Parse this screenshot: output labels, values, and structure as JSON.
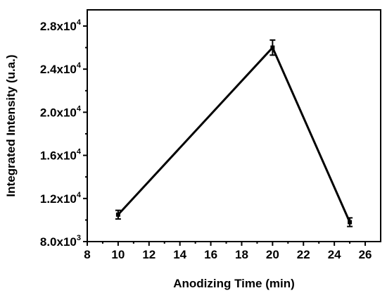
{
  "chart_data": {
    "type": "line",
    "title": "",
    "xlabel": "Anodizing Time (min)",
    "ylabel": "Integrated Intensity (u.a.)",
    "xlim": [
      8,
      27
    ],
    "ylim": [
      8000,
      29500
    ],
    "x_ticks": [
      8,
      10,
      12,
      14,
      16,
      18,
      20,
      22,
      24,
      26
    ],
    "y_ticks": [
      {
        "value": 8000,
        "mantissa": "8.0x10",
        "exp": "3"
      },
      {
        "value": 12000,
        "mantissa": "1.2x10",
        "exp": "4"
      },
      {
        "value": 16000,
        "mantissa": "1.6x10",
        "exp": "4"
      },
      {
        "value": 20000,
        "mantissa": "2.0x10",
        "exp": "4"
      },
      {
        "value": 24000,
        "mantissa": "2.4x10",
        "exp": "4"
      },
      {
        "value": 28000,
        "mantissa": "2.8x10",
        "exp": "4"
      }
    ],
    "series": [
      {
        "x": [
          10,
          20,
          25
        ],
        "y": [
          10500,
          26000,
          9800
        ],
        "error": [
          400,
          700,
          400
        ],
        "color": "#000000"
      }
    ],
    "grid": false,
    "legend": "none"
  }
}
